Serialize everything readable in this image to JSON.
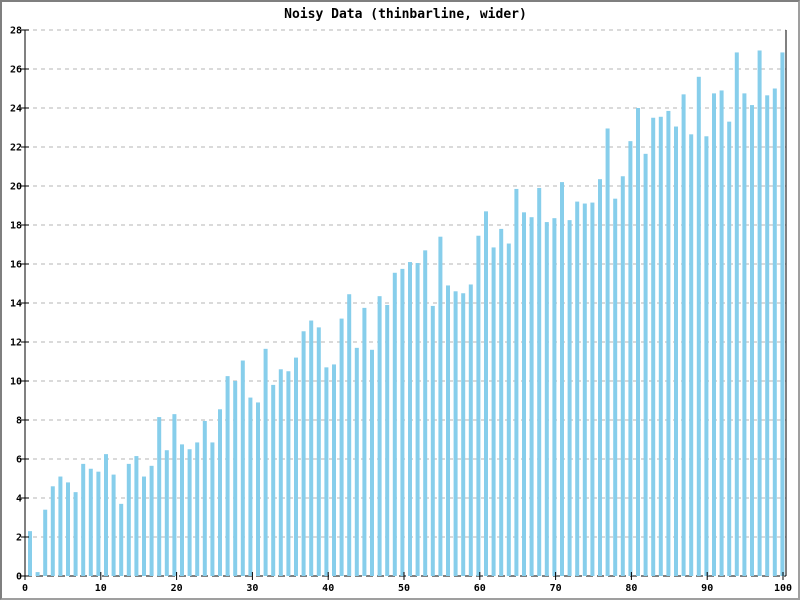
{
  "chart_data": {
    "type": "bar",
    "title": "Noisy Data (thinbarline, wider)",
    "xlabel": "",
    "ylabel": "",
    "x_start": 1,
    "x_step": 1,
    "values": [
      2.3,
      0.2,
      3.4,
      4.6,
      5.1,
      4.8,
      4.3,
      5.75,
      5.5,
      5.35,
      6.25,
      5.2,
      3.7,
      5.75,
      6.15,
      5.1,
      5.65,
      8.15,
      6.45,
      8.3,
      6.75,
      6.5,
      6.85,
      7.95,
      6.85,
      8.55,
      10.25,
      10.0,
      11.05,
      9.15,
      8.9,
      11.65,
      9.8,
      10.6,
      10.5,
      11.2,
      12.55,
      13.1,
      12.75,
      10.7,
      10.85,
      13.2,
      14.45,
      11.7,
      13.75,
      11.6,
      14.35,
      13.9,
      15.55,
      15.75,
      16.1,
      16.05,
      16.7,
      13.85,
      17.4,
      14.9,
      14.6,
      14.5,
      14.95,
      17.45,
      18.7,
      16.85,
      17.8,
      17.05,
      19.85,
      18.65,
      18.4,
      19.9,
      18.15,
      18.35,
      20.2,
      18.25,
      19.2,
      19.1,
      19.15,
      20.35,
      22.95,
      19.35,
      20.5,
      22.3,
      24.0,
      21.65,
      23.5,
      23.55,
      23.85,
      23.05,
      24.7,
      22.65,
      25.6,
      22.55,
      24.75,
      24.9,
      23.3,
      26.85,
      24.75,
      24.15,
      26.95,
      24.65,
      25.0,
      26.85
    ],
    "xlim": [
      0,
      101
    ],
    "ylim": [
      0,
      28
    ],
    "x_ticks": [
      0,
      10,
      20,
      30,
      40,
      50,
      60,
      70,
      80,
      90,
      100
    ],
    "y_ticks": [
      0,
      2,
      4,
      6,
      8,
      10,
      12,
      14,
      16,
      18,
      20,
      22,
      24,
      26,
      28
    ],
    "grid": "horizontal dashed gray lines at every y tick",
    "legend": "none",
    "bar_style": "thin vertical lines",
    "bar_color": "#87CEEB",
    "grid_color": "#b4b4b4",
    "axis_color": "#000000",
    "frame_color": "#808080",
    "background_color": "#ffffff"
  }
}
